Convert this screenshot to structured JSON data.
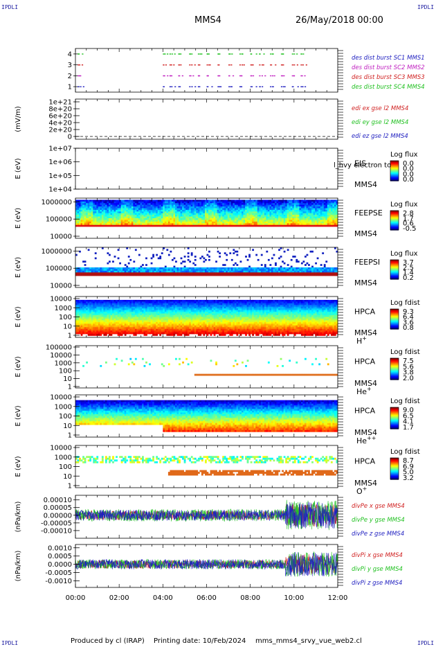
{
  "corner_label": "IPDLI",
  "header": {
    "spacecraft": "MMS4",
    "date": "26/May/2018 00:00"
  },
  "footer": {
    "produced_by": "Produced by cl (IRAP)",
    "printing_date": "Printing date: 10/Feb/2024",
    "script": "mms_mms4_srvy_vue_web2.cl"
  },
  "time_axis": {
    "ticks": [
      "00:00",
      "02:00",
      "04:00",
      "06:00",
      "08:00",
      "10:00",
      "12:00"
    ],
    "range_hours": [
      0,
      12
    ]
  },
  "chart_data": [
    {
      "type": "scatter",
      "panel": "burst-flags",
      "ylim": [
        0.5,
        4.5
      ],
      "yticks": [
        "1",
        "2",
        "3",
        "4"
      ],
      "legend": [
        {
          "label": "des dist burst SC1 MMS1",
          "color": "#2020c0"
        },
        {
          "label": "des dist burst SC2 MMS2",
          "color": "#c020c0"
        },
        {
          "label": "des dist burst SC3 MMS3",
          "color": "#d02020"
        },
        {
          "label": "des dist burst SC4 MMS4",
          "color": "#20c020"
        }
      ],
      "series": [
        {
          "name": "des dist burst SC1 MMS1",
          "level": 1,
          "x_hours": [
            0.1,
            4.0,
            4.3,
            4.7,
            5.2,
            5.6,
            6.0,
            6.5,
            7.0,
            7.5,
            8.0,
            8.4,
            8.9,
            9.4,
            9.9,
            10.3
          ]
        },
        {
          "name": "des dist burst SC2 MMS2",
          "level": 2,
          "x_hours": [
            0.1,
            4.0,
            4.3,
            4.7,
            5.2,
            5.6,
            6.0,
            6.5,
            7.0,
            7.5,
            8.0,
            8.4,
            8.9,
            9.4,
            9.9,
            10.3
          ]
        },
        {
          "name": "des dist burst SC3 MMS3",
          "level": 3,
          "x_hours": [
            0.1,
            4.0,
            4.3,
            4.7,
            5.2,
            5.6,
            6.0,
            6.5,
            7.0,
            7.5,
            8.0,
            8.4,
            8.9,
            9.4,
            9.9,
            10.3
          ]
        },
        {
          "name": "des dist burst SC4 MMS4",
          "level": 4,
          "x_hours": [
            0.1,
            4.0,
            4.3,
            4.7,
            5.2,
            5.6,
            6.0,
            6.5,
            7.0,
            7.5,
            8.0,
            8.4,
            8.9,
            9.4,
            9.9,
            10.3
          ]
        }
      ]
    },
    {
      "type": "line",
      "panel": "edi-efield",
      "ylabel": "(mV/m)",
      "yticks": [
        "0",
        "2e+20",
        "4e+20",
        "6e+20",
        "8e+20",
        "1e+21"
      ],
      "ylim": [
        0,
        1e+21
      ],
      "legend": [
        {
          "label": "edi ex gse l2 MMS4",
          "color": "#d02020"
        },
        {
          "label": "edi ey gse l2 MMS4",
          "color": "#20c020"
        },
        {
          "label": "edi ez gse l2 MMS4",
          "color": "#2020c0"
        }
      ],
      "values_note": "all near 0"
    },
    {
      "type": "heatmap",
      "panel": "eis",
      "ylabel": "E (eV)",
      "yticks": [
        "1e+04",
        "1e+05",
        "1e+06",
        "1e+07"
      ],
      "instrument": [
        "EIS",
        "MMS4"
      ],
      "overlay_text": "l_hvy electron to",
      "colorbar": {
        "title": "Log flux",
        "ticks": [
          "0.0",
          "0.0",
          "0.0",
          "0.0"
        ]
      }
    },
    {
      "type": "heatmap",
      "panel": "feepse",
      "ylabel": "E (eV)",
      "yticks": [
        "10000",
        "100000",
        "1000000"
      ],
      "instrument": [
        "FEEPSE",
        "MMS4"
      ],
      "colorbar": {
        "title": "Log flux",
        "ticks": [
          "2.8",
          "1.7",
          "0.6",
          "-0.5"
        ]
      }
    },
    {
      "type": "heatmap",
      "panel": "feepsi",
      "ylabel": "E (eV)",
      "yticks": [
        "10000",
        "100000",
        "1000000"
      ],
      "instrument": [
        "FEEPSI",
        "MMS4"
      ],
      "colorbar": {
        "title": "Log flux",
        "ticks": [
          "3.7",
          "2.5",
          "1.4",
          "0.2"
        ]
      }
    },
    {
      "type": "heatmap",
      "panel": "hpca-h",
      "ylabel": "E (eV)",
      "yticks": [
        "1",
        "10",
        "100",
        "1000",
        "10000"
      ],
      "instrument": [
        "HPCA",
        "MMS4"
      ],
      "species": "H",
      "species_sup": "+",
      "colorbar": {
        "title": "Log fdist",
        "ticks": [
          "9.3",
          "6.4",
          "3.6",
          "0.8"
        ]
      }
    },
    {
      "type": "heatmap",
      "panel": "hpca-he",
      "ylabel": "E (eV)",
      "yticks": [
        "1",
        "10",
        "100",
        "1000",
        "10000",
        "100000"
      ],
      "instrument": [
        "HPCA",
        "MMS4"
      ],
      "species": "He",
      "species_sup": "+",
      "colorbar": {
        "title": "Log fdist",
        "ticks": [
          "7.5",
          "5.6",
          "3.8",
          "2.0"
        ]
      }
    },
    {
      "type": "heatmap",
      "panel": "hpca-hepp",
      "ylabel": "E (eV)",
      "yticks": [
        "1",
        "10",
        "100",
        "1000",
        "10000"
      ],
      "instrument": [
        "HPCA",
        "MMS4"
      ],
      "species": "He",
      "species_sup": "++",
      "colorbar": {
        "title": "Log fdist",
        "ticks": [
          "9.0",
          "6.5",
          "4.1",
          "1.7"
        ]
      }
    },
    {
      "type": "heatmap",
      "panel": "hpca-o",
      "ylabel": "E (eV)",
      "yticks": [
        "1",
        "10",
        "100",
        "1000",
        "10000"
      ],
      "instrument": [
        "HPCA",
        "MMS4"
      ],
      "species": "O",
      "species_sup": "+",
      "colorbar": {
        "title": "Log fdist",
        "ticks": [
          "8.7",
          "6.9",
          "5.0",
          "3.2"
        ]
      }
    },
    {
      "type": "line",
      "panel": "divpe",
      "ylabel": "(nPa/km)",
      "yticks": [
        "-0.00010",
        "-0.00005",
        "0.00000",
        "0.00005",
        "0.00010"
      ],
      "ylim": [
        -0.00015,
        0.00013
      ],
      "legend": [
        {
          "label": "divPe x gse MMS4",
          "color": "#d02020"
        },
        {
          "label": "divPe y gse MMS4",
          "color": "#20c020"
        },
        {
          "label": "divPe z gse MMS4",
          "color": "#2020c0"
        }
      ]
    },
    {
      "type": "line",
      "panel": "divpi",
      "ylabel": "(nPa/km)",
      "yticks": [
        "-0.0010",
        "-0.0005",
        "0.0000",
        "0.0005",
        "0.0010"
      ],
      "ylim": [
        -0.0014,
        0.0012
      ],
      "legend": [
        {
          "label": "divPi x gse MMS4",
          "color": "#d02020"
        },
        {
          "label": "divPi y gse MMS4",
          "color": "#20c020"
        },
        {
          "label": "divPi z gse MMS4",
          "color": "#2020c0"
        }
      ]
    }
  ]
}
